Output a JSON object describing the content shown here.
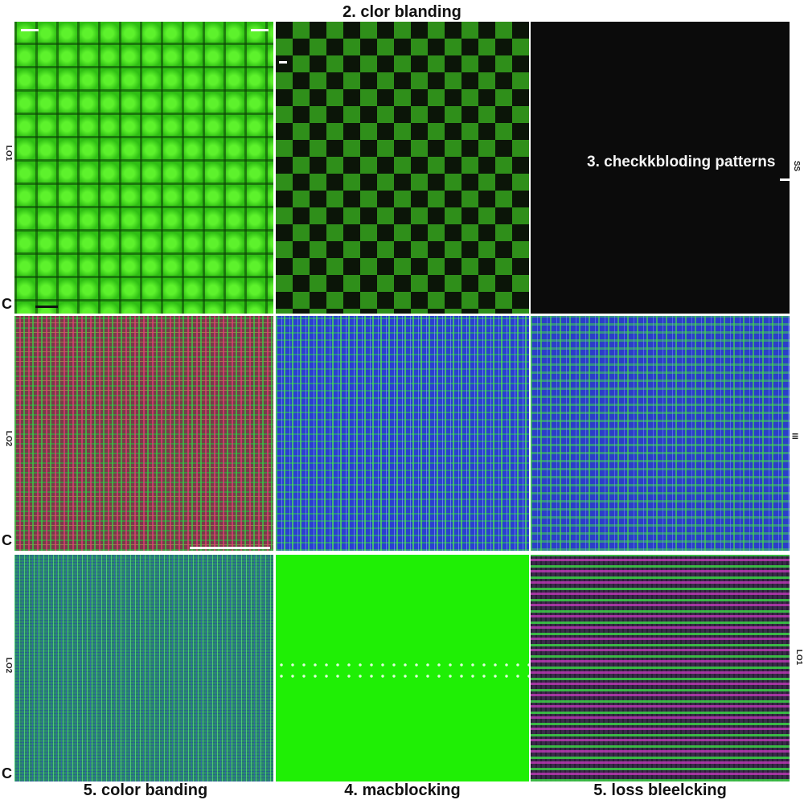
{
  "top_title": "2. clor blanding",
  "tile_caption": "3. checkkbloding patterns",
  "bottom_captions": [
    "5. color banding",
    "4. macblocking",
    "5. loss bleelcking"
  ],
  "side_labels": {
    "left": [
      "LO1",
      "LO2",
      "LO2"
    ],
    "right": [
      "SS",
      "III",
      "LO1"
    ]
  },
  "corner_letter": "C",
  "colors": {
    "bright_green": "#1fef05",
    "dark": "#0b0b0b",
    "blue": "#2a3fd0",
    "magenta": "#d23cc8"
  }
}
